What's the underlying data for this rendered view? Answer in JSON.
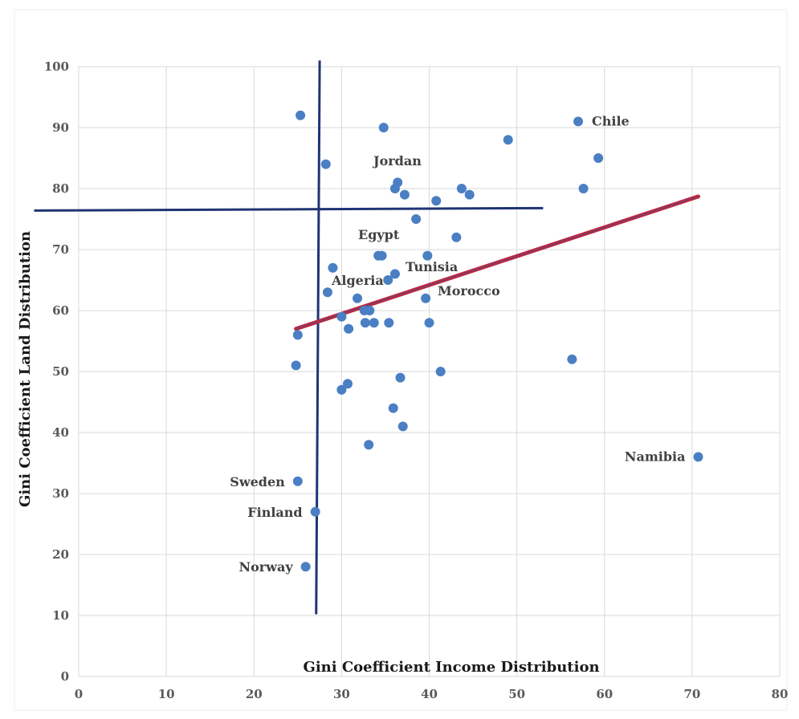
{
  "chart_data": {
    "type": "scatter",
    "title": "",
    "xlabel": "Gini Coefficient Income Distribution",
    "ylabel": "Gini Coefficient Land Distribution",
    "xlim": [
      0,
      80
    ],
    "ylim": [
      0,
      100
    ],
    "x_ticks": [
      "0",
      "10",
      "20",
      "30",
      "40",
      "50",
      "60",
      "70",
      "80"
    ],
    "y_ticks": [
      "0",
      "10",
      "20",
      "30",
      "40",
      "50",
      "60",
      "70",
      "80",
      "90",
      "100"
    ],
    "grid": true,
    "colors": {
      "points": "#4a7fc4",
      "quadrant_lines": "#1f3474",
      "trendline": "#c0283c",
      "trendline_inner": "#3c4fa0",
      "grid": "#d9d9d9"
    },
    "series": [
      {
        "points": [
          {
            "x": 25.3,
            "y": 92
          },
          {
            "x": 34.8,
            "y": 90
          },
          {
            "x": 28.2,
            "y": 84
          },
          {
            "x": 36.4,
            "y": 81
          },
          {
            "x": 36.1,
            "y": 80
          },
          {
            "x": 37.2,
            "y": 79
          },
          {
            "x": 40.8,
            "y": 78
          },
          {
            "x": 43.7,
            "y": 80
          },
          {
            "x": 44.6,
            "y": 79
          },
          {
            "x": 49.0,
            "y": 88
          },
          {
            "x": 57.0,
            "y": 91,
            "label": "Chile"
          },
          {
            "x": 59.3,
            "y": 85
          },
          {
            "x": 57.6,
            "y": 80
          },
          {
            "x": 38.5,
            "y": 75
          },
          {
            "x": 43.1,
            "y": 72
          },
          {
            "x": 34.2,
            "y": 69
          },
          {
            "x": 34.6,
            "y": 69
          },
          {
            "x": 39.8,
            "y": 69
          },
          {
            "x": 29.0,
            "y": 67
          },
          {
            "x": 36.1,
            "y": 66
          },
          {
            "x": 35.3,
            "y": 65
          },
          {
            "x": 28.4,
            "y": 63
          },
          {
            "x": 31.8,
            "y": 62
          },
          {
            "x": 39.6,
            "y": 62
          },
          {
            "x": 32.6,
            "y": 60
          },
          {
            "x": 33.2,
            "y": 60
          },
          {
            "x": 30.0,
            "y": 59
          },
          {
            "x": 32.7,
            "y": 58
          },
          {
            "x": 33.7,
            "y": 58
          },
          {
            "x": 35.4,
            "y": 58
          },
          {
            "x": 40.0,
            "y": 58
          },
          {
            "x": 30.8,
            "y": 57
          },
          {
            "x": 25.0,
            "y": 56
          },
          {
            "x": 24.8,
            "y": 51
          },
          {
            "x": 41.3,
            "y": 50
          },
          {
            "x": 56.3,
            "y": 52
          },
          {
            "x": 36.7,
            "y": 49
          },
          {
            "x": 30.7,
            "y": 48
          },
          {
            "x": 30.0,
            "y": 47
          },
          {
            "x": 35.9,
            "y": 44
          },
          {
            "x": 37.0,
            "y": 41
          },
          {
            "x": 33.1,
            "y": 38
          },
          {
            "x": 70.7,
            "y": 36,
            "label": "Namibia"
          },
          {
            "x": 25.0,
            "y": 32,
            "label": "Sweden"
          },
          {
            "x": 27.0,
            "y": 27,
            "label": "Finland"
          },
          {
            "x": 25.9,
            "y": 18,
            "label": "Norway"
          }
        ]
      }
    ],
    "annotations": [
      "Jordan",
      "Egypt",
      "Tunisia",
      "Algeria",
      "Morocco"
    ],
    "quadrant_lines": {
      "vertical": {
        "x_top": 27.5,
        "x_bottom": 27.1,
        "y_range": [
          10.2,
          101
        ]
      },
      "horizontal": {
        "y_left": 76.4,
        "y_right": 76.8,
        "x_range": [
          -0.5,
          53
        ]
      }
    },
    "trendline": {
      "x": [
        24.8,
        70.7
      ],
      "y": [
        57,
        78.7
      ]
    }
  }
}
